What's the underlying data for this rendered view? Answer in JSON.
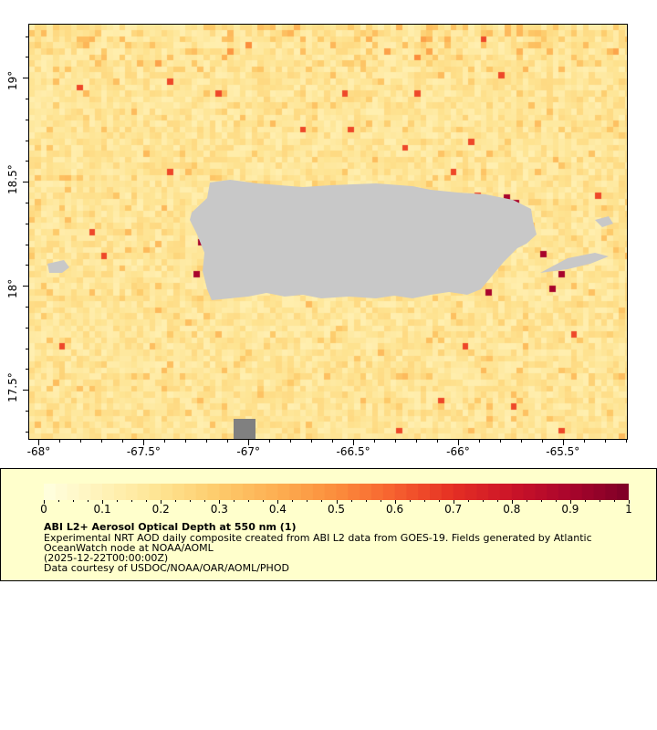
{
  "map": {
    "lon_range": [
      -68.05,
      -65.19
    ],
    "lat_range": [
      17.26,
      19.26
    ],
    "lon_ticks": [
      {
        "v": -68,
        "label": "-68°"
      },
      {
        "v": -67.5,
        "label": "-67.5°"
      },
      {
        "v": -67,
        "label": "-67°"
      },
      {
        "v": -66.5,
        "label": "-66.5°"
      },
      {
        "v": -66,
        "label": "-66°"
      },
      {
        "v": -65.5,
        "label": "-65.5°"
      }
    ],
    "lat_ticks": [
      {
        "v": 19,
        "label": "19°"
      },
      {
        "v": 18.5,
        "label": "18.5°"
      },
      {
        "v": 18,
        "label": "18°"
      },
      {
        "v": 17.5,
        "label": "17.5°"
      }
    ],
    "land_color": "#c8c8c8",
    "nodata_color": "#808080"
  },
  "colorbar": {
    "range": [
      0,
      1
    ],
    "tick_labels": [
      "0",
      "0.1",
      "0.2",
      "0.3",
      "0.4",
      "0.5",
      "0.6",
      "0.7",
      "0.8",
      "0.9",
      "1"
    ],
    "colors": [
      "#ffffe0",
      "#fff2b8",
      "#fee391",
      "#fdca6a",
      "#fdae51",
      "#fb8d3c",
      "#f6602f",
      "#e52f23",
      "#cb1428",
      "#a8042c",
      "#7d0026"
    ]
  },
  "legend": {
    "title": "ABI L2+ Aerosol Optical Depth at 550 nm (1)",
    "line1": "Experimental NRT AOD daily composite created from ABI L2 data from GOES-19. Fields generated by Atlantic",
    "line2": "OceanWatch node at NOAA/AOML",
    "line3": "(2025-12-22T00:00:00Z)",
    "line4": "Data courtesy of USDOC/NOAA/OAR/AOML/PHOD"
  }
}
